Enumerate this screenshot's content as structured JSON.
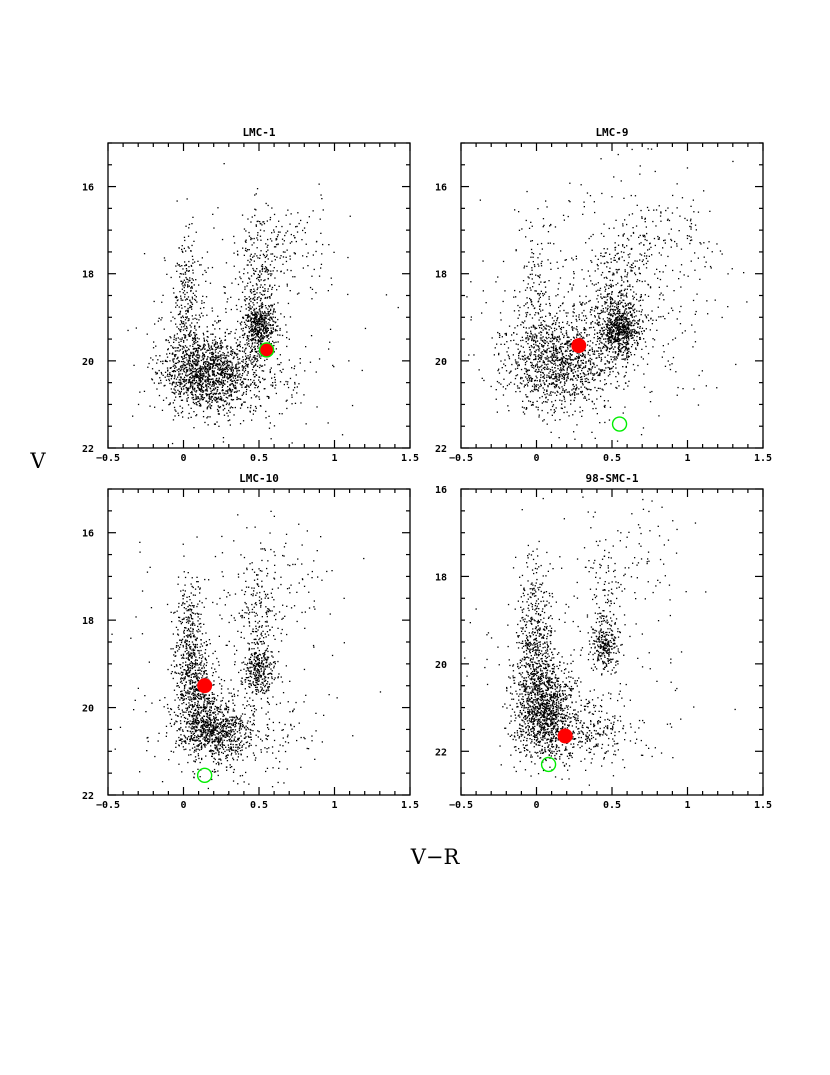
{
  "figure": {
    "ylabel": "V",
    "xlabel": "V−R"
  },
  "colors": {
    "points": "#000000",
    "filled_marker": "#ff0000",
    "open_marker": "#00ee00"
  },
  "chart_data": [
    {
      "type": "scatter",
      "title": "LMC-1",
      "xlim": [
        -0.5,
        1.5
      ],
      "ylim": [
        22,
        15
      ],
      "xticks": [
        -0.5,
        0,
        0.5,
        1,
        1.5
      ],
      "xtick_labels": [
        "−0.5",
        "0",
        "0.5",
        "1",
        "1.5"
      ],
      "yticks": [
        16,
        18,
        20,
        22
      ],
      "ytick_labels": [
        "16",
        "18",
        "20",
        "22"
      ],
      "y_inverted": true,
      "filled_marker": {
        "x": 0.55,
        "y": 19.75
      },
      "open_marker": {
        "x": 0.55,
        "y": 19.75
      },
      "clumps": [
        {
          "x": 0.15,
          "y": 20.3,
          "sx": 0.15,
          "sy": 0.45,
          "n": 1300
        },
        {
          "x": 0.03,
          "y": 18.7,
          "sx": 0.05,
          "sy": 0.9,
          "n": 280
        },
        {
          "x": 0.5,
          "y": 19.2,
          "sx": 0.05,
          "sy": 0.25,
          "n": 380
        },
        {
          "x": 0.5,
          "y": 18.4,
          "sx": 0.06,
          "sy": 0.9,
          "n": 300
        },
        {
          "x": 0.4,
          "y": 20.3,
          "sx": 0.2,
          "sy": 0.5,
          "n": 300
        },
        {
          "x": 0.7,
          "y": 17.4,
          "sx": 0.15,
          "sy": 0.6,
          "n": 130
        },
        {
          "x": 0.4,
          "y": 19.0,
          "sx": 0.35,
          "sy": 1.2,
          "n": 180
        }
      ]
    },
    {
      "type": "scatter",
      "title": "LMC-9",
      "xlim": [
        -0.5,
        1.5
      ],
      "ylim": [
        22,
        15
      ],
      "xticks": [
        -0.5,
        0,
        0.5,
        1,
        1.5
      ],
      "xtick_labels": [
        "−0.5",
        "0",
        "0.5",
        "1",
        "1.5"
      ],
      "yticks": [
        16,
        18,
        20,
        22
      ],
      "ytick_labels": [
        "16",
        "18",
        "20",
        "22"
      ],
      "y_inverted": true,
      "filled_marker": {
        "x": 0.28,
        "y": 19.65
      },
      "open_marker": {
        "x": 0.55,
        "y": 21.45
      },
      "clumps": [
        {
          "x": 0.15,
          "y": 20.0,
          "sx": 0.18,
          "sy": 0.55,
          "n": 1100
        },
        {
          "x": 0.55,
          "y": 19.3,
          "sx": 0.07,
          "sy": 0.3,
          "n": 550
        },
        {
          "x": 0.55,
          "y": 18.5,
          "sx": 0.1,
          "sy": 0.8,
          "n": 300
        },
        {
          "x": 0.8,
          "y": 17.2,
          "sx": 0.2,
          "sy": 0.6,
          "n": 150
        },
        {
          "x": 0.35,
          "y": 19.3,
          "sx": 0.35,
          "sy": 1.0,
          "n": 400
        },
        {
          "x": 0.0,
          "y": 18.3,
          "sx": 0.05,
          "sy": 1.0,
          "n": 120
        },
        {
          "x": 0.5,
          "y": 18.0,
          "sx": 0.45,
          "sy": 1.6,
          "n": 150
        }
      ]
    },
    {
      "type": "scatter",
      "title": "LMC-10",
      "xlim": [
        -0.5,
        1.5
      ],
      "ylim": [
        22,
        15
      ],
      "xticks": [
        -0.5,
        0,
        0.5,
        1,
        1.5
      ],
      "xtick_labels": [
        "−0.5",
        "0",
        "0.5",
        "1",
        "1.5"
      ],
      "yticks": [
        16,
        18,
        20,
        22
      ],
      "ytick_labels": [
        "16",
        "18",
        "20",
        "22"
      ],
      "y_inverted": true,
      "filled_marker": {
        "x": 0.14,
        "y": 19.5
      },
      "open_marker": {
        "x": 0.14,
        "y": 21.55
      },
      "clumps": [
        {
          "x": 0.2,
          "y": 20.5,
          "sx": 0.12,
          "sy": 0.35,
          "n": 750
        },
        {
          "x": 0.08,
          "y": 19.5,
          "sx": 0.07,
          "sy": 0.6,
          "n": 500
        },
        {
          "x": 0.03,
          "y": 18.3,
          "sx": 0.05,
          "sy": 0.8,
          "n": 250
        },
        {
          "x": 0.5,
          "y": 19.2,
          "sx": 0.05,
          "sy": 0.3,
          "n": 260
        },
        {
          "x": 0.5,
          "y": 18.3,
          "sx": 0.06,
          "sy": 0.8,
          "n": 200
        },
        {
          "x": 0.6,
          "y": 17.0,
          "sx": 0.2,
          "sy": 0.7,
          "n": 110
        },
        {
          "x": 0.3,
          "y": 20.7,
          "sx": 0.25,
          "sy": 0.5,
          "n": 250
        },
        {
          "x": 0.3,
          "y": 19.0,
          "sx": 0.4,
          "sy": 1.3,
          "n": 150
        }
      ]
    },
    {
      "type": "scatter",
      "title": "98-SMC-1",
      "xlim": [
        -0.5,
        1.5
      ],
      "ylim": [
        23,
        16
      ],
      "xticks": [
        -0.5,
        0,
        0.5,
        1,
        1.5
      ],
      "xtick_labels": [
        "−0.5",
        "0",
        "0.5",
        "1",
        "1.5"
      ],
      "yticks": [
        16,
        18,
        20,
        22
      ],
      "ytick_labels": [
        "16",
        "18",
        "20",
        "22"
      ],
      "y_inverted": true,
      "filled_marker": {
        "x": 0.19,
        "y": 21.65
      },
      "open_marker": {
        "x": 0.08,
        "y": 22.3
      },
      "clumps": [
        {
          "x": 0.05,
          "y": 21.0,
          "sx": 0.1,
          "sy": 0.55,
          "n": 1100
        },
        {
          "x": 0.0,
          "y": 19.8,
          "sx": 0.07,
          "sy": 0.7,
          "n": 350
        },
        {
          "x": -0.02,
          "y": 18.6,
          "sx": 0.05,
          "sy": 0.8,
          "n": 150
        },
        {
          "x": 0.25,
          "y": 21.6,
          "sx": 0.2,
          "sy": 0.35,
          "n": 350
        },
        {
          "x": 0.45,
          "y": 19.6,
          "sx": 0.04,
          "sy": 0.25,
          "n": 200
        },
        {
          "x": 0.45,
          "y": 18.8,
          "sx": 0.06,
          "sy": 0.8,
          "n": 130
        },
        {
          "x": 0.6,
          "y": 17.6,
          "sx": 0.2,
          "sy": 0.7,
          "n": 80
        },
        {
          "x": 0.3,
          "y": 20.3,
          "sx": 0.4,
          "sy": 1.2,
          "n": 180
        }
      ]
    }
  ]
}
